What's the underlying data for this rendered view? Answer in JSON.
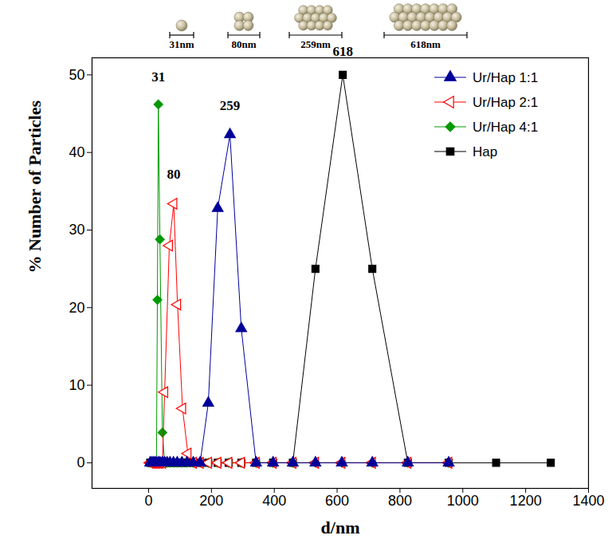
{
  "chart_data": {
    "type": "line",
    "x_label": "d/nm",
    "y_label": "% Number of Particles",
    "xlim": [
      -180,
      1400
    ],
    "xticks": [
      0,
      200,
      400,
      600,
      800,
      1000,
      1200,
      1400
    ],
    "ylim": [
      -3.3,
      52.2
    ],
    "yticks": [
      0,
      10,
      20,
      30,
      40,
      50
    ],
    "legend": "top-right",
    "series": [
      {
        "name": "Ur/Hap 1:1",
        "color": "#000099",
        "marker": "triangle",
        "x": [
          5,
          10,
          15,
          20,
          25,
          31,
          36,
          44,
          51,
          59,
          68,
          79,
          91,
          106,
          122,
          142,
          164,
          190,
          220,
          259,
          295,
          342,
          396,
          459,
          531,
          615,
          712,
          825,
          955
        ],
        "values": [
          0,
          0,
          0,
          0,
          0,
          0,
          0,
          0,
          0,
          0,
          0,
          0,
          0,
          0,
          0,
          0,
          0,
          7.7,
          32.8,
          42.3,
          17.3,
          0,
          0,
          0,
          0,
          0,
          0,
          0,
          0
        ]
      },
      {
        "name": "Ur/Hap 2:1",
        "color": "#ff0000",
        "marker": "triangle-left-open",
        "x": [
          5,
          10,
          15,
          20,
          25,
          31,
          36,
          44,
          51,
          66,
          80,
          92,
          108,
          125,
          142,
          164,
          190,
          220,
          255,
          295,
          342,
          396,
          459,
          531,
          615,
          712,
          825,
          955
        ],
        "values": [
          0,
          0,
          0,
          0,
          0,
          0,
          0,
          0,
          9.1,
          28,
          33.4,
          20.4,
          7,
          1.2,
          0,
          0,
          0,
          0,
          0,
          0,
          0,
          0,
          0,
          0,
          0,
          0,
          0,
          0
        ]
      },
      {
        "name": "Ur/Hap 4:1",
        "color": "#009900",
        "marker": "diamond",
        "x": [
          5,
          10,
          15,
          20,
          25,
          28,
          31,
          36,
          44,
          51,
          59,
          68,
          79,
          91,
          106,
          122,
          142,
          164,
          190,
          220,
          255,
          295,
          342,
          396,
          459,
          531,
          615,
          712,
          825,
          955
        ],
        "values": [
          0,
          0,
          0,
          0,
          0,
          21,
          46.2,
          28.8,
          3.9,
          0,
          0,
          0,
          0,
          0,
          0,
          0,
          0,
          0,
          0,
          0,
          0,
          0,
          0,
          0,
          0,
          0,
          0,
          0,
          0,
          0
        ]
      },
      {
        "name": "Hap",
        "color": "#000000",
        "marker": "square",
        "x": [
          5,
          10,
          15,
          20,
          25,
          31,
          36,
          44,
          51,
          59,
          68,
          79,
          91,
          106,
          122,
          142,
          164,
          190,
          220,
          255,
          295,
          342,
          396,
          459,
          531,
          618,
          712,
          825,
          955,
          1106,
          1280
        ],
        "values": [
          0,
          0,
          0,
          0,
          0,
          0,
          0,
          0,
          0,
          0,
          0,
          0,
          0,
          0,
          0,
          0,
          0,
          0,
          0,
          0,
          0,
          0,
          0,
          0,
          25,
          50,
          25,
          0,
          0,
          0,
          0
        ]
      }
    ],
    "annotations": [
      {
        "text": "31",
        "x": 31,
        "y": 49.7
      },
      {
        "text": "80",
        "x": 80,
        "y": 37.2
      },
      {
        "text": "259",
        "x": 259,
        "y": 46.0
      },
      {
        "text": "618",
        "x": 618,
        "y": 53.0
      }
    ],
    "size_labels": [
      "31nm",
      "80nm",
      "259nm",
      "618nm"
    ]
  }
}
